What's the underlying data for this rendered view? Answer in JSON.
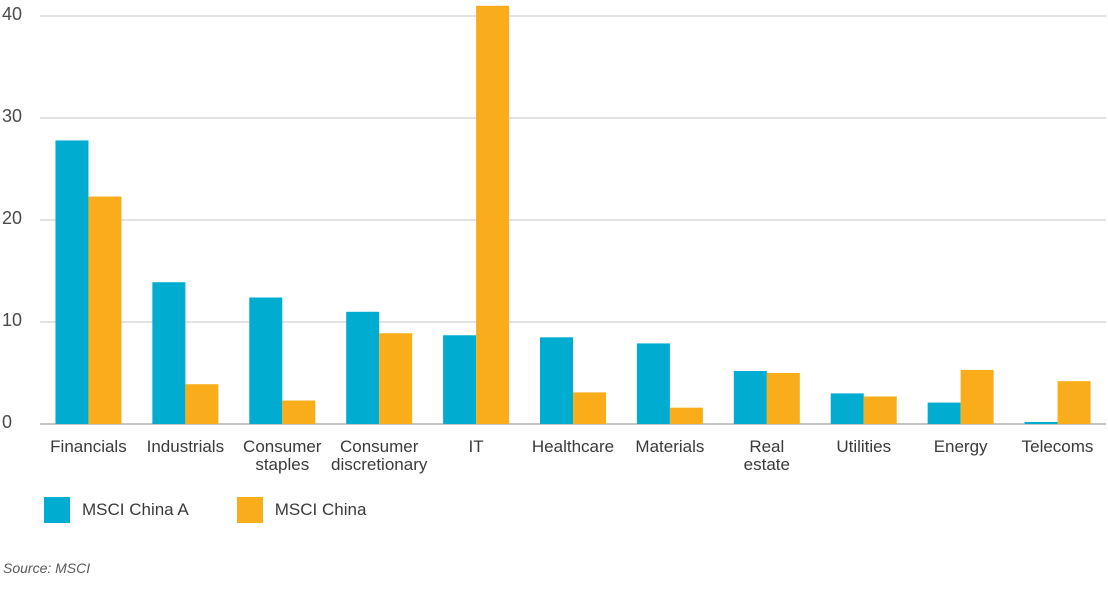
{
  "chart_data": {
    "type": "bar",
    "categories": [
      [
        "Financials"
      ],
      [
        "Industrials"
      ],
      [
        "Consumer",
        "staples"
      ],
      [
        "Consumer",
        "discretionary"
      ],
      [
        "IT"
      ],
      [
        "Healthcare"
      ],
      [
        "Materials"
      ],
      [
        "Real",
        "estate"
      ],
      [
        "Utilities"
      ],
      [
        "Energy"
      ],
      [
        "Telecoms"
      ]
    ],
    "series": [
      {
        "name": "MSCI China A",
        "color": "#00acd0",
        "values": [
          27.8,
          13.9,
          12.4,
          11.0,
          8.7,
          8.5,
          7.9,
          5.2,
          3.0,
          2.1,
          0.2
        ]
      },
      {
        "name": "MSCI China",
        "color": "#f9ad1b",
        "values": [
          22.3,
          3.9,
          2.3,
          8.9,
          41.0,
          3.1,
          1.6,
          5.0,
          2.7,
          5.3,
          4.2
        ]
      }
    ],
    "yticks": [
      0,
      10,
      20,
      30,
      40
    ],
    "ylim": [
      0,
      41
    ],
    "grid": true,
    "legend": "bottom-left"
  },
  "legend": {
    "items": [
      {
        "label": "MSCI China A",
        "color": "#00acd0"
      },
      {
        "label": "MSCI China",
        "color": "#f9ad1b"
      }
    ]
  },
  "source": "Source: MSCI"
}
